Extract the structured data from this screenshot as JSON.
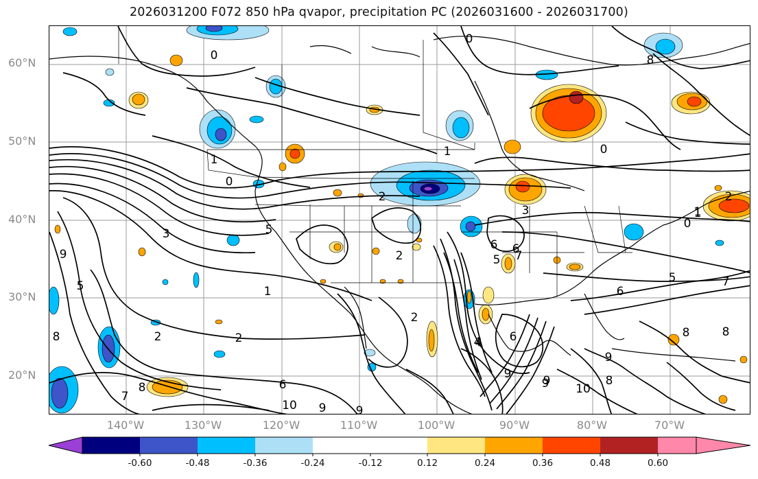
{
  "title": "2026031200 F072 850 hPa qvapor, precipitation PC (2026031600 - 2026031700)",
  "map": {
    "lat_labels": [
      "60°N",
      "50°N",
      "40°N",
      "30°N",
      "20°N"
    ],
    "lon_labels": [
      "140°W",
      "130°W",
      "120°W",
      "110°W",
      "100°W",
      "90°W",
      "80°W",
      "70°W"
    ],
    "contour_labels": [
      "1",
      "0",
      "1",
      "3",
      "5",
      "1",
      "6",
      "2",
      "6",
      "8",
      "7",
      "5",
      "9",
      "2",
      "2",
      "7",
      "8",
      "6",
      "10",
      "9",
      "9",
      "4",
      "2",
      "6",
      "5",
      "9",
      "10",
      "8",
      "9",
      "0",
      "0",
      "2",
      "3",
      "1",
      "2",
      "6",
      "7",
      "9",
      "5",
      "8",
      "8",
      "9",
      "4",
      "0",
      "0",
      "1",
      "8"
    ]
  },
  "colorbar": {
    "ticks": [
      "-0.60",
      "-0.48",
      "-0.36",
      "-0.24",
      "-0.12",
      "0.12",
      "0.24",
      "0.36",
      "0.48",
      "0.60"
    ],
    "colors": [
      "#9b3fd6",
      "#00007f",
      "#3d55c9",
      "#00bfff",
      "#ade0f7",
      "#ffffff",
      "#ffe680",
      "#ffa500",
      "#ff4500",
      "#b22222",
      "#ff88aa"
    ]
  }
}
